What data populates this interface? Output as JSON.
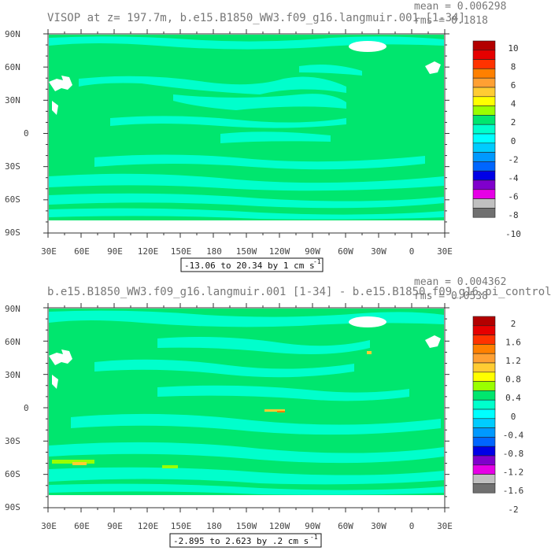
{
  "panels": [
    {
      "title": "VISOP at z= 197.7m, b.e15.B1850_WW3.f09_g16.langmuir.001 [1-34]",
      "mean_text": "mean = 0.006298",
      "rms_text": "rms = 0.1818",
      "range_text": "-13.06 to 20.34 by 1 cm s",
      "range_sup": "-1",
      "lon_labels": [
        "30E",
        "60E",
        "90E",
        "120E",
        "150E",
        "180",
        "150W",
        "120W",
        "90W",
        "60W",
        "30W",
        "0",
        "30E"
      ],
      "lat_labels": [
        "90N",
        "60N",
        "30N",
        "0",
        "30S",
        "60S",
        "90S"
      ],
      "colorbar_labels": [
        "10",
        "8",
        "6",
        "4",
        "2",
        "0",
        "-2",
        "-4",
        "-6",
        "-8",
        "-10"
      ]
    },
    {
      "title": "b.e15.B1850_WW3.f09_g16.langmuir.001 [1-34] - b.e15.B1850.f09_g16.pi_control",
      "mean_text": "mean = 0.004362",
      "rms_text": "rms = 0.0538",
      "range_text": "-2.895 to 2.623 by .2 cm s",
      "range_sup": "-1",
      "lon_labels": [
        "30E",
        "60E",
        "90E",
        "120E",
        "150E",
        "180",
        "150W",
        "120W",
        "90W",
        "60W",
        "30W",
        "0",
        "30E"
      ],
      "lat_labels": [
        "90N",
        "60N",
        "30N",
        "0",
        "30S",
        "60S",
        "90S"
      ],
      "colorbar_labels": [
        "2",
        "1.6",
        "1.2",
        "0.8",
        "0.4",
        "0",
        "-0.4",
        "-0.8",
        "-1.2",
        "-1.6",
        "-2"
      ]
    }
  ],
  "colors": {
    "ocean_fill": "#00e66e",
    "near_zero_negative": "#00ffcc",
    "land": "#ffffff",
    "colorbar": [
      "#b30000",
      "#e60000",
      "#ff3300",
      "#ff8000",
      "#ffa033",
      "#ffcc33",
      "#ffff00",
      "#99ff00",
      "#00e66e",
      "#00ffcc",
      "#00ffff",
      "#00ccff",
      "#0099ff",
      "#0066ff",
      "#0000e6",
      "#8000cc",
      "#e600e6",
      "#c0c0c0",
      "#707070"
    ]
  }
}
